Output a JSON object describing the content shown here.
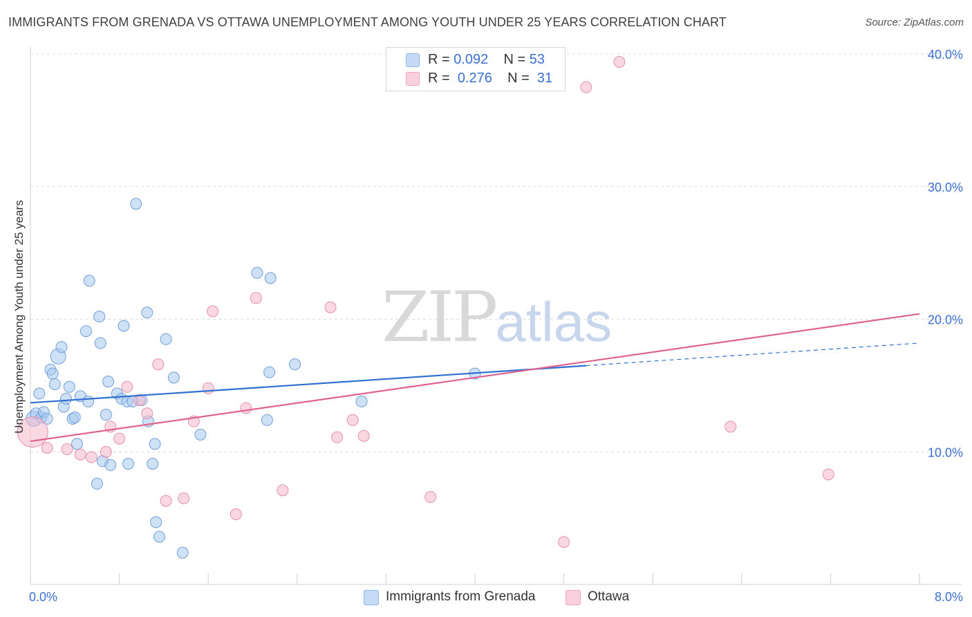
{
  "title": "IMMIGRANTS FROM GRENADA VS OTTAWA UNEMPLOYMENT AMONG YOUTH UNDER 25 YEARS CORRELATION CHART",
  "source": "Source: ZipAtlas.com",
  "watermark": {
    "zip": "ZIP",
    "atlas": "atlas"
  },
  "legend": {
    "rows": [
      {
        "r_label": "R =",
        "r_value": "0.092",
        "n_label": "N =",
        "n_value": "53",
        "color": "#a8c8f0"
      },
      {
        "r_label": "R =",
        "r_value": "0.276",
        "n_label": "N =",
        "n_value": "31",
        "color": "#f5b8cb"
      }
    ]
  },
  "bottom_legend": [
    {
      "label": "Immigrants from Grenada",
      "color": "#a8c8f0"
    },
    {
      "label": "Ottawa",
      "color": "#f5b8cb"
    }
  ],
  "chart_data": {
    "type": "scatter",
    "title": "IMMIGRANTS FROM GRENADA VS OTTAWA UNEMPLOYMENT AMONG YOUTH UNDER 25 YEARS CORRELATION CHART",
    "xlabel": "",
    "ylabel": "Unemployment Among Youth under 25 years",
    "xlim": [
      0,
      8
    ],
    "ylim": [
      0,
      40
    ],
    "x_tick_labels": [
      {
        "value": 0,
        "label": "0.0%"
      },
      {
        "value": 8,
        "label": "8.0%"
      }
    ],
    "y_tick_labels": [
      {
        "value": 10,
        "label": "10.0%"
      },
      {
        "value": 20,
        "label": "20.0%"
      },
      {
        "value": 30,
        "label": "30.0%"
      },
      {
        "value": 40,
        "label": "40.0%"
      }
    ],
    "series": [
      {
        "name": "Immigrants from Grenada",
        "color": "#a8c8f0",
        "stroke": "#6f9fd8",
        "trend": {
          "x0": 0,
          "y0": 13.7,
          "x1": 5.0,
          "y1": 16.5,
          "dash_x1": 8.0,
          "dash_y1": 18.2,
          "color": "#2f6fd0"
        },
        "points": [
          [
            0.03,
            12.5
          ],
          [
            0.05,
            12.9
          ],
          [
            0.08,
            14.4
          ],
          [
            0.1,
            12.6
          ],
          [
            0.12,
            13.0
          ],
          [
            0.15,
            12.5
          ],
          [
            0.18,
            16.2
          ],
          [
            0.2,
            15.9
          ],
          [
            0.22,
            15.1
          ],
          [
            0.25,
            17.2
          ],
          [
            0.28,
            17.9
          ],
          [
            0.3,
            13.4
          ],
          [
            0.32,
            14.0
          ],
          [
            0.35,
            14.9
          ],
          [
            0.38,
            12.5
          ],
          [
            0.4,
            12.6
          ],
          [
            0.42,
            10.6
          ],
          [
            0.45,
            14.2
          ],
          [
            0.5,
            19.1
          ],
          [
            0.52,
            13.8
          ],
          [
            0.53,
            22.9
          ],
          [
            0.6,
            7.6
          ],
          [
            0.62,
            20.2
          ],
          [
            0.63,
            18.2
          ],
          [
            0.65,
            9.3
          ],
          [
            0.68,
            12.8
          ],
          [
            0.7,
            15.3
          ],
          [
            0.72,
            9.0
          ],
          [
            0.78,
            14.4
          ],
          [
            0.82,
            14.0
          ],
          [
            0.84,
            19.5
          ],
          [
            0.87,
            13.8
          ],
          [
            0.88,
            9.1
          ],
          [
            0.92,
            13.8
          ],
          [
            0.95,
            28.7
          ],
          [
            1.0,
            13.9
          ],
          [
            1.05,
            20.5
          ],
          [
            1.06,
            12.3
          ],
          [
            1.1,
            9.1
          ],
          [
            1.12,
            10.6
          ],
          [
            1.13,
            4.7
          ],
          [
            1.16,
            3.6
          ],
          [
            1.22,
            18.5
          ],
          [
            1.29,
            15.6
          ],
          [
            1.37,
            2.4
          ],
          [
            1.53,
            11.3
          ],
          [
            2.04,
            23.5
          ],
          [
            2.13,
            12.4
          ],
          [
            2.15,
            16.0
          ],
          [
            2.16,
            23.1
          ],
          [
            2.38,
            16.6
          ],
          [
            2.98,
            13.8
          ],
          [
            4.0,
            15.9
          ]
        ]
      },
      {
        "name": "Ottawa",
        "color": "#f5b8cb",
        "stroke": "#e690ad",
        "trend": {
          "x0": 0,
          "y0": 10.8,
          "x1": 8.0,
          "y1": 20.4,
          "color": "#e0628f"
        },
        "points": [
          [
            0.02,
            11.5
          ],
          [
            0.15,
            10.3
          ],
          [
            0.33,
            10.2
          ],
          [
            0.45,
            9.8
          ],
          [
            0.55,
            9.6
          ],
          [
            0.68,
            10.0
          ],
          [
            0.72,
            11.9
          ],
          [
            0.8,
            11.0
          ],
          [
            0.87,
            14.9
          ],
          [
            0.98,
            13.9
          ],
          [
            1.05,
            12.9
          ],
          [
            1.15,
            16.6
          ],
          [
            1.22,
            6.3
          ],
          [
            1.38,
            6.5
          ],
          [
            1.47,
            12.3
          ],
          [
            1.6,
            14.8
          ],
          [
            1.64,
            20.6
          ],
          [
            1.85,
            5.3
          ],
          [
            1.94,
            13.3
          ],
          [
            2.03,
            21.6
          ],
          [
            2.27,
            7.1
          ],
          [
            2.7,
            20.9
          ],
          [
            2.76,
            11.1
          ],
          [
            2.9,
            12.4
          ],
          [
            3.0,
            11.2
          ],
          [
            3.6,
            6.6
          ],
          [
            4.8,
            3.2
          ],
          [
            5.0,
            37.5
          ],
          [
            5.3,
            39.4
          ],
          [
            6.3,
            11.9
          ],
          [
            7.18,
            8.3
          ]
        ]
      }
    ]
  }
}
